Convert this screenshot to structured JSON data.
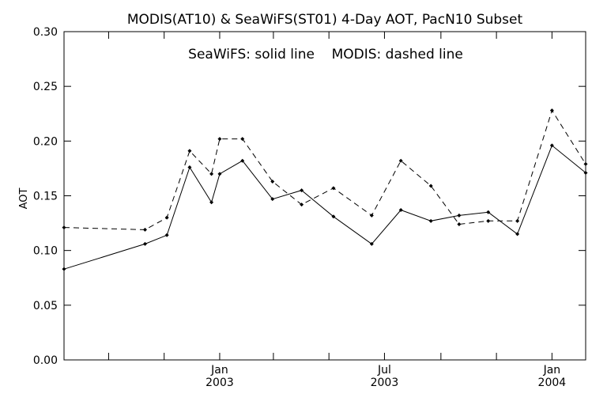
{
  "chart_data": {
    "type": "line",
    "title": "MODIS(AT10) & SeaWiFS(ST01) 4-Day AOT, PacN10 Subset",
    "annotation": "SeaWiFS: solid line    MODIS: dashed line",
    "ylabel": "AOT",
    "xlabel": "",
    "ylim": [
      0,
      0.3
    ],
    "xlim": [
      "2002-07-14",
      "2004-02-07"
    ],
    "yticks": [
      "0.00",
      "0.05",
      "0.10",
      "0.15",
      "0.20",
      "0.25",
      "0.30"
    ],
    "xticks": [
      {
        "date": "2002-09-01",
        "label": "",
        "year": ""
      },
      {
        "date": "2002-11-01",
        "label": "",
        "year": ""
      },
      {
        "date": "2003-01-01",
        "label": "Jan",
        "year": "2003"
      },
      {
        "date": "2003-03-01",
        "label": "",
        "year": ""
      },
      {
        "date": "2003-05-01",
        "label": "",
        "year": ""
      },
      {
        "date": "2003-07-01",
        "label": "Jul",
        "year": "2003"
      },
      {
        "date": "2003-09-01",
        "label": "",
        "year": ""
      },
      {
        "date": "2003-11-01",
        "label": "",
        "year": ""
      },
      {
        "date": "2004-01-01",
        "label": "Jan",
        "year": "2004"
      }
    ],
    "series": [
      {
        "name": "SeaWiFS",
        "style": "solid",
        "points": [
          {
            "x": "2002-07-14",
            "y": 0.083
          },
          {
            "x": "2002-10-11",
            "y": 0.106
          },
          {
            "x": "2002-11-04",
            "y": 0.114
          },
          {
            "x": "2002-11-29",
            "y": 0.176
          },
          {
            "x": "2002-12-23",
            "y": 0.144
          },
          {
            "x": "2003-01-01",
            "y": 0.17
          },
          {
            "x": "2003-01-26",
            "y": 0.182
          },
          {
            "x": "2003-02-28",
            "y": 0.147
          },
          {
            "x": "2003-04-01",
            "y": 0.155
          },
          {
            "x": "2003-05-06",
            "y": 0.131
          },
          {
            "x": "2003-06-17",
            "y": 0.106
          },
          {
            "x": "2003-07-19",
            "y": 0.137
          },
          {
            "x": "2003-08-21",
            "y": 0.127
          },
          {
            "x": "2003-09-21",
            "y": 0.132
          },
          {
            "x": "2003-10-23",
            "y": 0.135
          },
          {
            "x": "2003-11-24",
            "y": 0.115
          },
          {
            "x": "2004-01-01",
            "y": 0.196
          },
          {
            "x": "2004-02-07",
            "y": 0.171
          }
        ]
      },
      {
        "name": "MODIS",
        "style": "dashed",
        "points": [
          {
            "x": "2002-07-14",
            "y": 0.121
          },
          {
            "x": "2002-10-11",
            "y": 0.119
          },
          {
            "x": "2002-11-04",
            "y": 0.13
          },
          {
            "x": "2002-11-29",
            "y": 0.191
          },
          {
            "x": "2002-12-23",
            "y": 0.17
          },
          {
            "x": "2003-01-01",
            "y": 0.202
          },
          {
            "x": "2003-01-26",
            "y": 0.202
          },
          {
            "x": "2003-02-28",
            "y": 0.163
          },
          {
            "x": "2003-04-01",
            "y": 0.142
          },
          {
            "x": "2003-05-06",
            "y": 0.157
          },
          {
            "x": "2003-06-17",
            "y": 0.132
          },
          {
            "x": "2003-07-19",
            "y": 0.182
          },
          {
            "x": "2003-08-21",
            "y": 0.159
          },
          {
            "x": "2003-09-21",
            "y": 0.124
          },
          {
            "x": "2003-10-23",
            "y": 0.127
          },
          {
            "x": "2003-11-24",
            "y": 0.127
          },
          {
            "x": "2004-01-01",
            "y": 0.228
          },
          {
            "x": "2004-02-07",
            "y": 0.179
          }
        ]
      }
    ]
  }
}
